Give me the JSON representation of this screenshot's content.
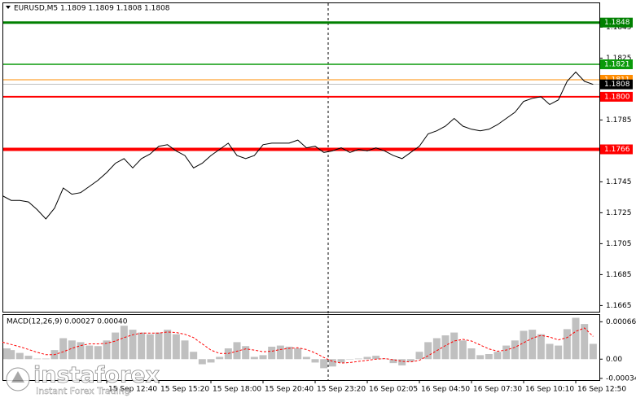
{
  "chart_data": [
    {
      "type": "line",
      "title": "EURUSD,M5  1.1809 1.1809 1.1808 1.1808",
      "categories": [
        null,
        null,
        null,
        null,
        null,
        null,
        null,
        null,
        null,
        null,
        null,
        null,
        "15 Sep 12:40",
        null,
        null,
        null,
        null,
        null,
        "15 Sep 15:20",
        null,
        null,
        null,
        null,
        null,
        "15 Sep 18:00",
        null,
        null,
        null,
        null,
        null,
        "15 Sep 20:40",
        null,
        null,
        null,
        null,
        null,
        "15 Sep 23:20",
        null,
        null,
        null,
        null,
        null,
        "16 Sep 02:05",
        null,
        null,
        null,
        null,
        null,
        "16 Sep 04:50",
        null,
        null,
        null,
        null,
        null,
        "16 Sep 07:30",
        null,
        null,
        null,
        null,
        null,
        "16 Sep 10:10",
        null,
        null,
        null,
        null,
        null,
        "16 Sep 12:50",
        null,
        null
      ],
      "values": [
        1.1736,
        1.1733,
        1.1733,
        1.1732,
        1.1727,
        1.1721,
        1.1728,
        1.1741,
        1.1737,
        1.1738,
        1.1742,
        1.1746,
        1.1751,
        1.1757,
        1.176,
        1.1754,
        1.176,
        1.1763,
        1.1768,
        1.1769,
        1.1765,
        1.1762,
        1.1754,
        1.1757,
        1.1762,
        1.1766,
        1.177,
        1.1762,
        1.176,
        1.1762,
        1.1769,
        1.177,
        1.177,
        1.177,
        1.1772,
        1.1767,
        1.1768,
        1.1764,
        1.1765,
        1.1767,
        1.1764,
        1.1766,
        1.1765,
        1.1767,
        1.1765,
        1.1762,
        1.176,
        1.1764,
        1.1768,
        1.1776,
        1.1778,
        1.1781,
        1.1786,
        1.1781,
        1.1779,
        1.1778,
        1.1779,
        1.1782,
        1.1786,
        1.179,
        1.1797,
        1.1799,
        1.18,
        1.1795,
        1.1798,
        1.181,
        1.1816,
        1.181,
        1.1808
      ],
      "color": "#000000",
      "ylim": [
        1.1661,
        1.1861
      ],
      "yticks": [
        1.1845,
        1.1825,
        1.1785,
        1.1745,
        1.1725,
        1.1705,
        1.1685,
        1.1665
      ],
      "levels": [
        {
          "value": 1.1848,
          "color": "#008000"
        },
        {
          "value": 1.1821,
          "color": "#0a9a0a"
        },
        {
          "value": 1.1811,
          "color": "#ff8c00"
        },
        {
          "value": 1.1808,
          "color": "#000000"
        },
        {
          "value": 1.18,
          "label": "1.1800",
          "color": "#ff0000"
        },
        {
          "value": 1.1766,
          "color": "#ff0000"
        }
      ]
    },
    {
      "type": "macd",
      "title": "MACD(12,26,9) 0.00027 0.00040",
      "series": [
        {
          "type": "bar",
          "color": "#c0c0c0",
          "values": [
            0.00019,
            0.00016,
            0.00011,
            6e-05,
            1e-05,
            1e-05,
            0.00016,
            0.00037,
            0.00033,
            0.0003,
            0.00024,
            0.00023,
            0.00033,
            0.00047,
            0.00059,
            0.00052,
            0.00047,
            0.00044,
            0.00047,
            0.00052,
            0.00044,
            0.00033,
            0.00013,
            -9e-05,
            -6e-05,
            4e-05,
            0.00019,
            0.0003,
            0.00023,
            4e-05,
            7e-05,
            0.00022,
            0.00024,
            0.00022,
            0.00019,
            4e-05,
            -6e-05,
            -0.00016,
            -0.00013,
            -6e-05,
            0,
            1e-05,
            4e-05,
            6e-05,
            1e-05,
            -7e-05,
            -0.00011,
            -4e-05,
            0.00013,
            0.0003,
            0.00037,
            0.00042,
            0.00047,
            0.00033,
            0.00019,
            7e-05,
            9e-05,
            0.00013,
            0.00024,
            0.00033,
            0.0005,
            0.00052,
            0.00044,
            0.00027,
            0.00024,
            0.00053,
            0.00073,
            0.00062,
            0.00027
          ]
        },
        {
          "type": "line",
          "color": "#ff0000",
          "dash": true,
          "values": [
            0.0003,
            0.00026,
            0.00022,
            0.00017,
            0.00012,
            8e-05,
            8e-05,
            0.00013,
            0.00019,
            0.00024,
            0.00027,
            0.00027,
            0.00028,
            0.00032,
            0.00038,
            0.00043,
            0.00046,
            0.00046,
            0.00046,
            0.00048,
            0.00047,
            0.00044,
            0.00038,
            0.00027,
            0.00016,
            0.0001,
            0.0001,
            0.00014,
            0.00018,
            0.00016,
            0.00013,
            0.00014,
            0.00017,
            0.00019,
            0.0002,
            0.00017,
            0.00011,
            3e-05,
            -4e-05,
            -7e-05,
            -6e-05,
            -4e-05,
            -2e-05,
            0,
            1e-05,
            -1e-05,
            -4e-05,
            -5e-05,
            -2e-05,
            6e-05,
            0.00015,
            0.00024,
            0.00032,
            0.00035,
            0.00032,
            0.00025,
            0.00018,
            0.00014,
            0.00016,
            0.00021,
            0.00029,
            0.00037,
            0.00042,
            0.00039,
            0.00034,
            0.00038,
            0.00049,
            0.00055,
            0.0004
          ]
        }
      ],
      "ylim": [
        -0.00037,
        0.00078
      ],
      "yticks": [
        0.00066,
        {
          "value": 0,
          "label": "0.00"
        },
        -0.00034
      ]
    }
  ],
  "watermark": {
    "brand": "instaforex",
    "tagline": "Instant Forex Trading"
  }
}
